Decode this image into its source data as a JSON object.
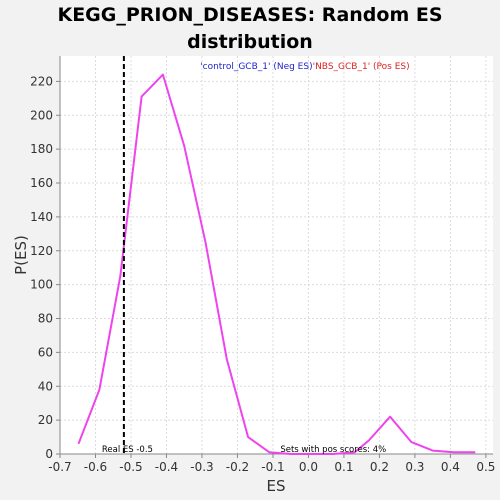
{
  "chart_data": {
    "type": "line",
    "title_line1": "KEGG_PRION_DISEASES: Random ES",
    "title_line2": "distribution",
    "xlabel": "ES",
    "ylabel": "P(ES)",
    "xlim": [
      -0.7,
      0.52
    ],
    "ylim": [
      0,
      235
    ],
    "xticks": [
      -0.7,
      -0.6,
      -0.5,
      -0.4,
      -0.3,
      -0.2,
      -0.1,
      0.0,
      0.1,
      0.2,
      0.3,
      0.4,
      0.5
    ],
    "xtick_labels": [
      "-0.7",
      "-0.6",
      "-0.5",
      "-0.4",
      "-0.3",
      "-0.2",
      "-0.1",
      "0.0",
      "0.1",
      "0.2",
      "0.3",
      "0.4",
      "0.5"
    ],
    "yticks": [
      0,
      20,
      40,
      60,
      80,
      100,
      120,
      140,
      160,
      180,
      200,
      220
    ],
    "ytick_labels": [
      "0",
      "20",
      "40",
      "60",
      "80",
      "100",
      "120",
      "140",
      "160",
      "180",
      "200",
      "220"
    ],
    "grid": true,
    "series": [
      {
        "color": "#ee44ee",
        "x": [
          -0.648,
          -0.589,
          -0.53,
          -0.47,
          -0.41,
          -0.35,
          -0.29,
          -0.23,
          -0.17,
          -0.11,
          -0.05,
          0.01,
          0.07,
          0.13,
          0.17,
          0.23,
          0.29,
          0.35,
          0.41,
          0.47
        ],
        "y": [
          6,
          38,
          105,
          211,
          224,
          182,
          125,
          56,
          10,
          1,
          0,
          0,
          0,
          1,
          8,
          22,
          7,
          2,
          1,
          1
        ]
      }
    ],
    "real_es": {
      "x": -0.52,
      "color": "#000000",
      "style": "dashed"
    },
    "annotations": {
      "real_es": "Real ES -0.5",
      "pos_scores": "Sets with pos scores: 4%"
    },
    "legend": {
      "neg_text": "'control_GCB_1' (Neg ES)",
      "neg_color": "#2222cc",
      "pos_text": "'NBS_GCB_1' (Pos ES)",
      "pos_color": "#dd2222",
      "placement": "top-center"
    }
  }
}
